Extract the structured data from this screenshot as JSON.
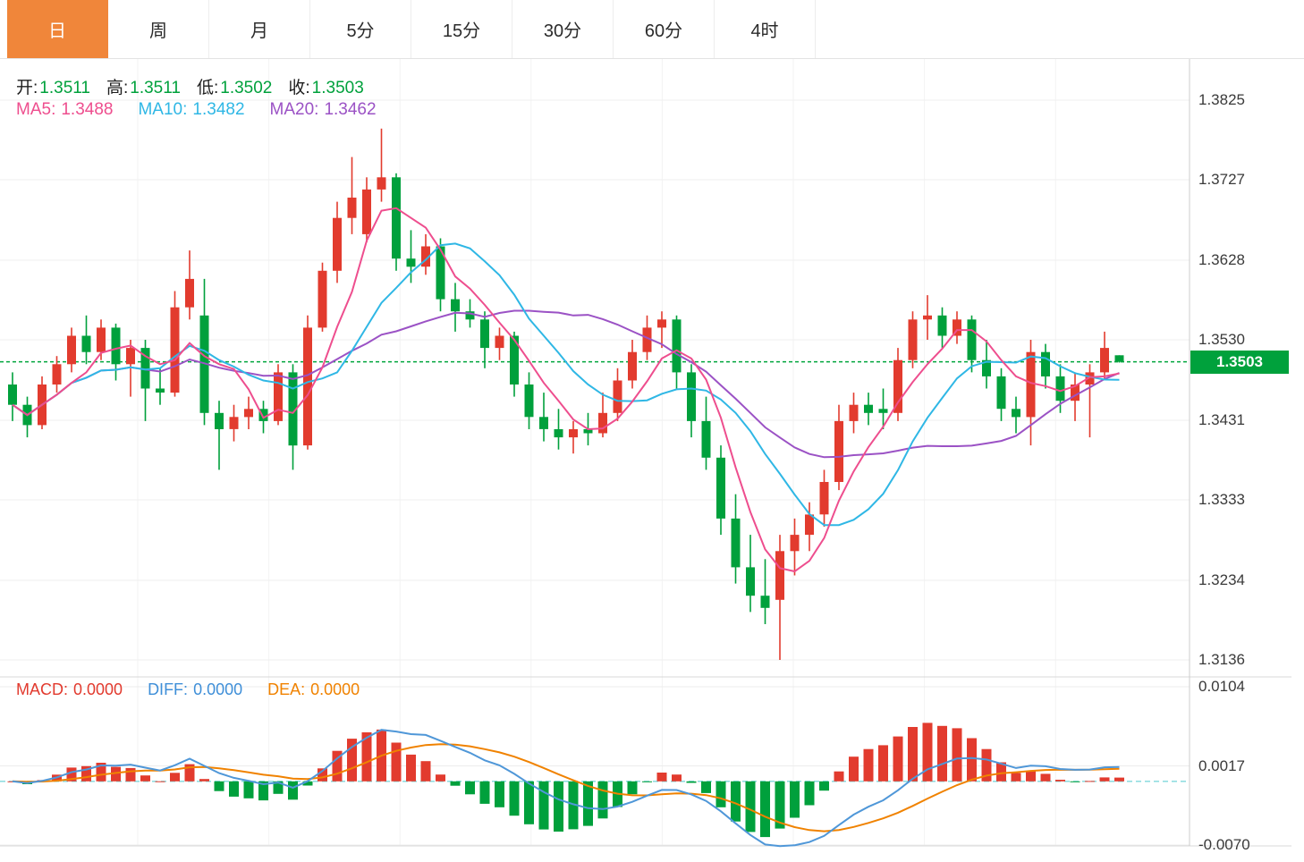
{
  "tabs": {
    "items": [
      {
        "label": "日",
        "active": true
      },
      {
        "label": "周",
        "active": false
      },
      {
        "label": "月",
        "active": false
      },
      {
        "label": "5分",
        "active": false
      },
      {
        "label": "15分",
        "active": false
      },
      {
        "label": "30分",
        "active": false
      },
      {
        "label": "60分",
        "active": false
      },
      {
        "label": "4时",
        "active": false
      }
    ]
  },
  "legend": {
    "ohlc": {
      "open_label": "开:",
      "open": "1.3511",
      "high_label": "高:",
      "high": "1.3511",
      "low_label": "低:",
      "low": "1.3502",
      "close_label": "收:",
      "close": "1.3503"
    },
    "ma": {
      "ma5_label": "MA5:",
      "ma5": "1.3488",
      "ma10_label": "MA10:",
      "ma10": "1.3482",
      "ma20_label": "MA20:",
      "ma20": "1.3462"
    },
    "macd": {
      "macd_label": "MACD:",
      "macd": "0.0000",
      "diff_label": "DIFF:",
      "diff": "0.0000",
      "dea_label": "DEA:",
      "dea": "0.0000"
    }
  },
  "price_tag": {
    "value": "1.3503"
  },
  "axes": {
    "main_ticks": [
      {
        "label": "1.3825",
        "value": 1.3825
      },
      {
        "label": "1.3727",
        "value": 1.3727
      },
      {
        "label": "1.3628",
        "value": 1.3628
      },
      {
        "label": "1.3530",
        "value": 1.353
      },
      {
        "label": "1.3431",
        "value": 1.3431
      },
      {
        "label": "1.3333",
        "value": 1.3333
      },
      {
        "label": "1.3234",
        "value": 1.3234
      },
      {
        "label": "1.3136",
        "value": 1.3136
      }
    ],
    "macd_ticks": [
      {
        "label": "0.0104",
        "value": 0.0104
      },
      {
        "label": "0.0017",
        "value": 0.0017
      },
      {
        "label": "-0.0070",
        "value": -0.007
      }
    ]
  },
  "chart_data": {
    "type": "candlestick",
    "timeframe": "日",
    "last_price": 1.3503,
    "ohlc_current": {
      "open": 1.3511,
      "high": 1.3511,
      "low": 1.3502,
      "close": 1.3503
    },
    "moving_averages": {
      "ma5": 1.3488,
      "ma10": 1.3482,
      "ma20": 1.3462
    },
    "ylim_main": [
      1.3117,
      1.3878
    ],
    "y_ticks_main": [
      1.3825,
      1.3727,
      1.3628,
      1.353,
      1.3431,
      1.3333,
      1.3234,
      1.3136
    ],
    "candles": [
      [
        1.3475,
        1.349,
        1.343,
        1.345
      ],
      [
        1.345,
        1.346,
        1.341,
        1.3425
      ],
      [
        1.3425,
        1.3485,
        1.342,
        1.3475
      ],
      [
        1.3475,
        1.351,
        1.3465,
        1.35
      ],
      [
        1.35,
        1.3545,
        1.349,
        1.3535
      ],
      [
        1.3535,
        1.356,
        1.35,
        1.3515
      ],
      [
        1.3515,
        1.3555,
        1.3505,
        1.3545
      ],
      [
        1.3545,
        1.355,
        1.348,
        1.35
      ],
      [
        1.35,
        1.353,
        1.346,
        1.352
      ],
      [
        1.352,
        1.353,
        1.343,
        1.347
      ],
      [
        1.347,
        1.3495,
        1.345,
        1.3465
      ],
      [
        1.3465,
        1.359,
        1.346,
        1.357
      ],
      [
        1.357,
        1.364,
        1.3555,
        1.3605
      ],
      [
        1.356,
        1.3605,
        1.3425,
        1.344
      ],
      [
        1.344,
        1.3455,
        1.337,
        1.342
      ],
      [
        1.342,
        1.345,
        1.3405,
        1.3435
      ],
      [
        1.3435,
        1.346,
        1.342,
        1.3445
      ],
      [
        1.3445,
        1.3455,
        1.3415,
        1.343
      ],
      [
        1.343,
        1.35,
        1.3425,
        1.349
      ],
      [
        1.349,
        1.35,
        1.337,
        1.34
      ],
      [
        1.34,
        1.356,
        1.3395,
        1.3545
      ],
      [
        1.3545,
        1.3625,
        1.354,
        1.3615
      ],
      [
        1.3615,
        1.37,
        1.36,
        1.368
      ],
      [
        1.368,
        1.3755,
        1.366,
        1.3705
      ],
      [
        1.366,
        1.373,
        1.365,
        1.3715
      ],
      [
        1.3715,
        1.379,
        1.37,
        1.373
      ],
      [
        1.373,
        1.3735,
        1.3615,
        1.363
      ],
      [
        1.363,
        1.3665,
        1.36,
        1.362
      ],
      [
        1.362,
        1.366,
        1.361,
        1.3645
      ],
      [
        1.3645,
        1.3655,
        1.3565,
        1.358
      ],
      [
        1.358,
        1.36,
        1.354,
        1.3565
      ],
      [
        1.3565,
        1.358,
        1.3545,
        1.3555
      ],
      [
        1.3555,
        1.3565,
        1.3495,
        1.352
      ],
      [
        1.352,
        1.3545,
        1.3505,
        1.3535
      ],
      [
        1.3535,
        1.354,
        1.346,
        1.3475
      ],
      [
        1.3475,
        1.349,
        1.342,
        1.3435
      ],
      [
        1.3435,
        1.3465,
        1.3405,
        1.342
      ],
      [
        1.342,
        1.3445,
        1.3395,
        1.341
      ],
      [
        1.341,
        1.343,
        1.339,
        1.342
      ],
      [
        1.342,
        1.344,
        1.34,
        1.3415
      ],
      [
        1.3415,
        1.3465,
        1.341,
        1.344
      ],
      [
        1.344,
        1.3495,
        1.343,
        1.348
      ],
      [
        1.348,
        1.353,
        1.347,
        1.3515
      ],
      [
        1.3515,
        1.356,
        1.3505,
        1.3545
      ],
      [
        1.3545,
        1.3565,
        1.352,
        1.3555
      ],
      [
        1.3555,
        1.356,
        1.347,
        1.349
      ],
      [
        1.349,
        1.35,
        1.341,
        1.343
      ],
      [
        1.343,
        1.346,
        1.337,
        1.3385
      ],
      [
        1.3385,
        1.34,
        1.329,
        1.331
      ],
      [
        1.331,
        1.334,
        1.323,
        1.325
      ],
      [
        1.325,
        1.329,
        1.3195,
        1.3215
      ],
      [
        1.3215,
        1.326,
        1.318,
        1.32
      ],
      [
        1.321,
        1.329,
        1.3136,
        1.327
      ],
      [
        1.327,
        1.331,
        1.324,
        1.329
      ],
      [
        1.329,
        1.333,
        1.327,
        1.3315
      ],
      [
        1.3315,
        1.337,
        1.33,
        1.3355
      ],
      [
        1.3355,
        1.345,
        1.3345,
        1.343
      ],
      [
        1.343,
        1.3465,
        1.3415,
        1.345
      ],
      [
        1.345,
        1.3465,
        1.3425,
        1.344
      ],
      [
        1.3445,
        1.347,
        1.342,
        1.344
      ],
      [
        1.344,
        1.352,
        1.343,
        1.3505
      ],
      [
        1.3505,
        1.3565,
        1.3495,
        1.3555
      ],
      [
        1.3555,
        1.3585,
        1.353,
        1.356
      ],
      [
        1.356,
        1.357,
        1.352,
        1.3535
      ],
      [
        1.3535,
        1.3565,
        1.3525,
        1.3555
      ],
      [
        1.3555,
        1.356,
        1.349,
        1.3505
      ],
      [
        1.3505,
        1.353,
        1.347,
        1.3485
      ],
      [
        1.3485,
        1.3495,
        1.343,
        1.3445
      ],
      [
        1.3445,
        1.346,
        1.3415,
        1.3435
      ],
      [
        1.3435,
        1.353,
        1.34,
        1.3515
      ],
      [
        1.3515,
        1.3525,
        1.347,
        1.3485
      ],
      [
        1.3485,
        1.35,
        1.344,
        1.3455
      ],
      [
        1.3455,
        1.349,
        1.343,
        1.3475
      ],
      [
        1.3475,
        1.35,
        1.341,
        1.349
      ],
      [
        1.349,
        1.354,
        1.348,
        1.352
      ],
      [
        1.3511,
        1.3511,
        1.3502,
        1.3503
      ]
    ],
    "sub_chart": {
      "type": "macd",
      "computed_from": "candles (EMA12/EMA26, DEA=EMA9 of DIFF, hist=2*(DIFF-DEA))",
      "legend_values": {
        "macd": 0.0,
        "diff": 0.0,
        "dea": 0.0
      },
      "y_ticks": [
        0.0104,
        0.0017,
        -0.007
      ],
      "zero_line": 0.0
    },
    "colors": {
      "up": "#e23b2e",
      "down": "#00a03c",
      "ma5": "#ee4e8e",
      "ma10": "#2fb7e5",
      "ma20": "#9b52c5",
      "diff": "#4f97d8",
      "dea": "#f08200",
      "price_line": "#00a53c",
      "price_tag_bg": "#00a13c",
      "active_tab": "#f0863a",
      "zero_dashed": "#7fd8dc"
    }
  }
}
